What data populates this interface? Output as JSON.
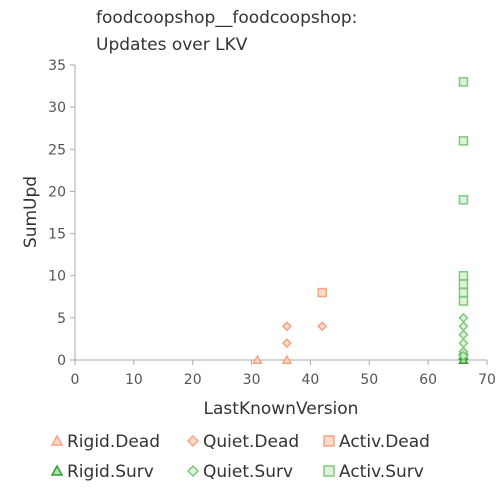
{
  "chart_data": {
    "type": "scatter",
    "title_lines": [
      "foodcoopshop__foodcoopshop:",
      "Updates over LKV"
    ],
    "xlabel": "LastKnownVersion",
    "ylabel": "SumUpd",
    "xlim": [
      0,
      70
    ],
    "ylim": [
      0,
      35
    ],
    "xticks": [
      0,
      10,
      20,
      30,
      40,
      50,
      60,
      70
    ],
    "yticks": [
      0,
      5,
      10,
      15,
      20,
      25,
      30,
      35
    ],
    "grid": false,
    "legend_placement": "bottom",
    "series": [
      {
        "name": "Rigid.Dead",
        "marker": "triangle",
        "stroke": "#f4a582",
        "fill": "#fbd3bf",
        "points": [
          [
            31,
            0
          ],
          [
            36,
            0
          ]
        ]
      },
      {
        "name": "Quiet.Dead",
        "marker": "diamond",
        "stroke": "#f4a582",
        "fill": "#fbd3bf",
        "points": [
          [
            36,
            4
          ],
          [
            36,
            2
          ],
          [
            42,
            4
          ]
        ]
      },
      {
        "name": "Activ.Dead",
        "marker": "square",
        "stroke": "#f4a582",
        "fill": "#fbd3bf",
        "points": [
          [
            42,
            8
          ]
        ]
      },
      {
        "name": "Rigid.Surv",
        "marker": "triangle",
        "stroke": "#2ca02c",
        "fill": "#a6dba0",
        "points": [
          [
            66,
            0
          ],
          [
            66,
            0.5
          ],
          [
            66,
            1
          ]
        ]
      },
      {
        "name": "Quiet.Surv",
        "marker": "diamond",
        "stroke": "#7fc97f",
        "fill": "#d9f0d3",
        "points": [
          [
            66,
            5
          ],
          [
            66,
            4
          ],
          [
            66,
            3
          ],
          [
            66,
            2
          ],
          [
            66,
            1
          ],
          [
            66,
            0.5
          ]
        ]
      },
      {
        "name": "Activ.Surv",
        "marker": "square",
        "stroke": "#7fc97f",
        "fill": "#d9f0d3",
        "points": [
          [
            66,
            33
          ],
          [
            66,
            26
          ],
          [
            66,
            19
          ],
          [
            66,
            10
          ],
          [
            66,
            9
          ],
          [
            66,
            8
          ],
          [
            66,
            7
          ]
        ]
      }
    ]
  }
}
